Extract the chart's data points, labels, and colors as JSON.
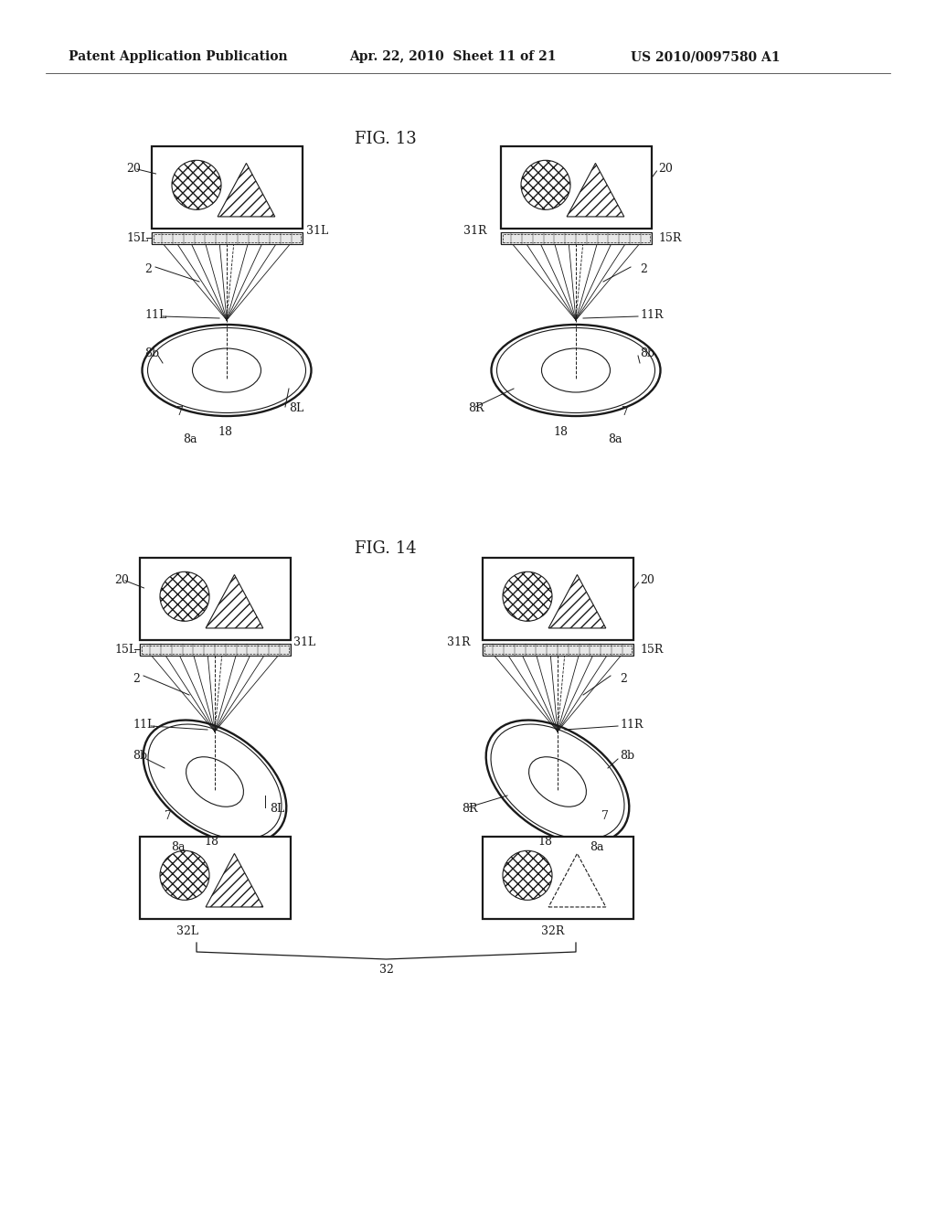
{
  "header_left": "Patent Application Publication",
  "header_center": "Apr. 22, 2010  Sheet 11 of 21",
  "header_right": "US 2010/0097580 A1",
  "fig13_title": "FIG. 13",
  "fig14_title": "FIG. 14",
  "bg_color": "#ffffff",
  "line_color": "#1a1a1a",
  "font_size_header": 10,
  "font_size_label": 9,
  "font_size_fig": 13
}
